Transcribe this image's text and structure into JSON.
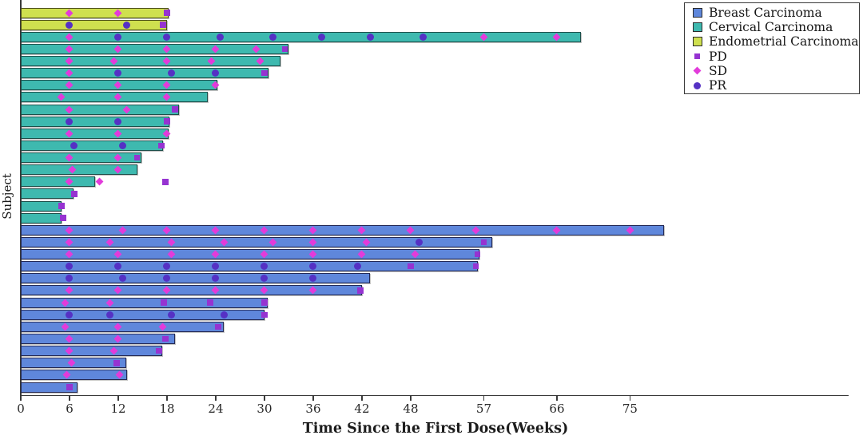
{
  "chart_data": {
    "type": "bar",
    "subtype": "swimmer-plot",
    "orientation": "horizontal",
    "title": "",
    "xlabel": "Time Since the First Dose(Weeks)",
    "ylabel": "Subject",
    "x_ticks": [
      0,
      6,
      12,
      18,
      24,
      30,
      36,
      42,
      48,
      57,
      66,
      75
    ],
    "xlim": [
      0,
      102
    ],
    "unit": "weeks",
    "grid": false,
    "legend_position": "upper right",
    "groups": [
      {
        "label": "Breast Carcinoma",
        "fill": "#5F87DB",
        "edge": "#252A55"
      },
      {
        "label": "Cervical Carcinoma",
        "fill": "#3EB9AF",
        "edge": "#1C4F4A"
      },
      {
        "label": "Endometrial Carcinoma",
        "fill": "#CFE04F",
        "edge": "#4F521C"
      }
    ],
    "response_markers": [
      {
        "label": "PD",
        "shape": "square",
        "color": "#9633D1"
      },
      {
        "label": "SD",
        "shape": "diamond",
        "color": "#E23BDA"
      },
      {
        "label": "PR",
        "shape": "circle",
        "color": "#5531C4"
      }
    ],
    "subjects": [
      {
        "group": "Endometrial Carcinoma",
        "bar_end_weeks": 18.2,
        "events": [
          {
            "week": 6,
            "response": "SD"
          },
          {
            "week": 12,
            "response": "SD"
          },
          {
            "week": 18,
            "response": "PD"
          }
        ]
      },
      {
        "group": "Endometrial Carcinoma",
        "bar_end_weeks": 18.0,
        "events": [
          {
            "week": 6,
            "response": "PR"
          },
          {
            "week": 13,
            "response": "PR"
          },
          {
            "week": 17.5,
            "response": "PD"
          }
        ]
      },
      {
        "group": "Cervical Carcinoma",
        "bar_end_weeks": 69,
        "events": [
          {
            "week": 6,
            "response": "SD"
          },
          {
            "week": 12,
            "response": "PR"
          },
          {
            "week": 18,
            "response": "PR"
          },
          {
            "week": 24.5,
            "response": "PR"
          },
          {
            "week": 31,
            "response": "PR"
          },
          {
            "week": 37,
            "response": "PR"
          },
          {
            "week": 43,
            "response": "PR"
          },
          {
            "week": 49.5,
            "response": "PR"
          },
          {
            "week": 57,
            "response": "SD"
          },
          {
            "week": 66,
            "response": "SD"
          }
        ]
      },
      {
        "group": "Cervical Carcinoma",
        "bar_end_weeks": 33,
        "events": [
          {
            "week": 6,
            "response": "SD"
          },
          {
            "week": 12,
            "response": "SD"
          },
          {
            "week": 18,
            "response": "SD"
          },
          {
            "week": 24,
            "response": "SD"
          },
          {
            "week": 29,
            "response": "SD"
          },
          {
            "week": 32.5,
            "response": "PD"
          }
        ]
      },
      {
        "group": "Cervical Carcinoma",
        "bar_end_weeks": 32,
        "events": [
          {
            "week": 6,
            "response": "SD"
          },
          {
            "week": 11.5,
            "response": "SD"
          },
          {
            "week": 18,
            "response": "SD"
          },
          {
            "week": 23.5,
            "response": "SD"
          },
          {
            "week": 29.5,
            "response": "SD"
          }
        ]
      },
      {
        "group": "Cervical Carcinoma",
        "bar_end_weeks": 30.5,
        "events": [
          {
            "week": 6,
            "response": "SD"
          },
          {
            "week": 12,
            "response": "PR"
          },
          {
            "week": 18.5,
            "response": "PR"
          },
          {
            "week": 24,
            "response": "PR"
          },
          {
            "week": 30,
            "response": "PD"
          }
        ]
      },
      {
        "group": "Cervical Carcinoma",
        "bar_end_weeks": 24.2,
        "events": [
          {
            "week": 6,
            "response": "SD"
          },
          {
            "week": 12,
            "response": "SD"
          },
          {
            "week": 18,
            "response": "SD"
          },
          {
            "week": 24,
            "response": "SD"
          }
        ]
      },
      {
        "group": "Cervical Carcinoma",
        "bar_end_weeks": 23,
        "events": [
          {
            "week": 5,
            "response": "SD"
          },
          {
            "week": 12,
            "response": "SD"
          },
          {
            "week": 18,
            "response": "SD"
          }
        ]
      },
      {
        "group": "Cervical Carcinoma",
        "bar_end_weeks": 19.5,
        "events": [
          {
            "week": 6,
            "response": "SD"
          },
          {
            "week": 13,
            "response": "SD"
          },
          {
            "week": 19,
            "response": "PD"
          }
        ]
      },
      {
        "group": "Cervical Carcinoma",
        "bar_end_weeks": 18.3,
        "events": [
          {
            "week": 6,
            "response": "PR"
          },
          {
            "week": 12,
            "response": "PR"
          },
          {
            "week": 18,
            "response": "PD"
          }
        ]
      },
      {
        "group": "Cervical Carcinoma",
        "bar_end_weeks": 18.2,
        "events": [
          {
            "week": 6,
            "response": "SD"
          },
          {
            "week": 12,
            "response": "SD"
          },
          {
            "week": 18,
            "response": "SD"
          }
        ]
      },
      {
        "group": "Cervical Carcinoma",
        "bar_end_weeks": 17.5,
        "events": [
          {
            "week": 6.5,
            "response": "PR"
          },
          {
            "week": 12.5,
            "response": "PR"
          },
          {
            "week": 17.3,
            "response": "PD"
          }
        ]
      },
      {
        "group": "Cervical Carcinoma",
        "bar_end_weeks": 14.9,
        "events": [
          {
            "week": 6,
            "response": "SD"
          },
          {
            "week": 12,
            "response": "SD"
          },
          {
            "week": 14.3,
            "response": "PD"
          }
        ]
      },
      {
        "group": "Cervical Carcinoma",
        "bar_end_weeks": 14.4,
        "events": [
          {
            "week": 6.3,
            "response": "SD"
          },
          {
            "week": 12,
            "response": "SD"
          }
        ]
      },
      {
        "group": "Cervical Carcinoma",
        "bar_end_weeks": 9.1,
        "events": [
          {
            "week": 6,
            "response": "SD"
          },
          {
            "week": 9.7,
            "response": "SD"
          },
          {
            "week": 17.8,
            "response": "PD"
          }
        ]
      },
      {
        "group": "Cervical Carcinoma",
        "bar_end_weeks": 6.5,
        "events": [
          {
            "week": 6.6,
            "response": "PD"
          }
        ]
      },
      {
        "group": "Cervical Carcinoma",
        "bar_end_weeks": 5.0,
        "events": [
          {
            "week": 5,
            "response": "PD"
          }
        ]
      },
      {
        "group": "Cervical Carcinoma",
        "bar_end_weeks": 5.0,
        "events": [
          {
            "week": 5.2,
            "response": "PD"
          }
        ]
      },
      {
        "group": "Breast Carcinoma",
        "bar_end_weeks": 79.2,
        "events": [
          {
            "week": 6,
            "response": "SD"
          },
          {
            "week": 12.5,
            "response": "SD"
          },
          {
            "week": 18,
            "response": "SD"
          },
          {
            "week": 24,
            "response": "SD"
          },
          {
            "week": 30,
            "response": "SD"
          },
          {
            "week": 36,
            "response": "SD"
          },
          {
            "week": 42,
            "response": "SD"
          },
          {
            "week": 48,
            "response": "SD"
          },
          {
            "week": 56,
            "response": "SD"
          },
          {
            "week": 66,
            "response": "SD"
          },
          {
            "week": 75,
            "response": "SD"
          }
        ]
      },
      {
        "group": "Breast Carcinoma",
        "bar_end_weeks": 58,
        "events": [
          {
            "week": 6,
            "response": "SD"
          },
          {
            "week": 11,
            "response": "SD"
          },
          {
            "week": 18.5,
            "response": "SD"
          },
          {
            "week": 25,
            "response": "SD"
          },
          {
            "week": 31,
            "response": "SD"
          },
          {
            "week": 36,
            "response": "SD"
          },
          {
            "week": 42.5,
            "response": "SD"
          },
          {
            "week": 49,
            "response": "PR"
          },
          {
            "week": 57,
            "response": "PD"
          }
        ]
      },
      {
        "group": "Breast Carcinoma",
        "bar_end_weeks": 56.5,
        "events": [
          {
            "week": 6,
            "response": "SD"
          },
          {
            "week": 12,
            "response": "SD"
          },
          {
            "week": 18.5,
            "response": "SD"
          },
          {
            "week": 24,
            "response": "SD"
          },
          {
            "week": 30,
            "response": "SD"
          },
          {
            "week": 36,
            "response": "SD"
          },
          {
            "week": 42,
            "response": "SD"
          },
          {
            "week": 48.5,
            "response": "SD"
          },
          {
            "week": 56.2,
            "response": "PD"
          }
        ]
      },
      {
        "group": "Breast Carcinoma",
        "bar_end_weeks": 56.3,
        "events": [
          {
            "week": 6,
            "response": "PR"
          },
          {
            "week": 12,
            "response": "PR"
          },
          {
            "week": 18,
            "response": "PR"
          },
          {
            "week": 24,
            "response": "PR"
          },
          {
            "week": 30,
            "response": "PR"
          },
          {
            "week": 36,
            "response": "PR"
          },
          {
            "week": 41.5,
            "response": "PR"
          },
          {
            "week": 48,
            "response": "PD"
          },
          {
            "week": 56,
            "response": "PD"
          }
        ]
      },
      {
        "group": "Breast Carcinoma",
        "bar_end_weeks": 43,
        "events": [
          {
            "week": 6,
            "response": "PR"
          },
          {
            "week": 12.5,
            "response": "PR"
          },
          {
            "week": 18,
            "response": "PR"
          },
          {
            "week": 24,
            "response": "PR"
          },
          {
            "week": 30,
            "response": "PR"
          },
          {
            "week": 36,
            "response": "PR"
          }
        ]
      },
      {
        "group": "Breast Carcinoma",
        "bar_end_weeks": 42,
        "events": [
          {
            "week": 6,
            "response": "SD"
          },
          {
            "week": 12,
            "response": "SD"
          },
          {
            "week": 18,
            "response": "SD"
          },
          {
            "week": 24,
            "response": "SD"
          },
          {
            "week": 30,
            "response": "SD"
          },
          {
            "week": 36,
            "response": "SD"
          },
          {
            "week": 41.8,
            "response": "PD"
          }
        ]
      },
      {
        "group": "Breast Carcinoma",
        "bar_end_weeks": 30.4,
        "events": [
          {
            "week": 5.5,
            "response": "SD"
          },
          {
            "week": 11,
            "response": "SD"
          },
          {
            "week": 17.6,
            "response": "PD"
          },
          {
            "week": 23.3,
            "response": "PD"
          },
          {
            "week": 30,
            "response": "PD"
          }
        ]
      },
      {
        "group": "Breast Carcinoma",
        "bar_end_weeks": 30,
        "events": [
          {
            "week": 6,
            "response": "PR"
          },
          {
            "week": 11,
            "response": "PR"
          },
          {
            "week": 18.5,
            "response": "PR"
          },
          {
            "week": 25,
            "response": "PR"
          },
          {
            "week": 30,
            "response": "PD"
          }
        ]
      },
      {
        "group": "Breast Carcinoma",
        "bar_end_weeks": 25,
        "events": [
          {
            "week": 5.5,
            "response": "SD"
          },
          {
            "week": 12,
            "response": "SD"
          },
          {
            "week": 17.5,
            "response": "SD"
          },
          {
            "week": 24.3,
            "response": "PD"
          }
        ]
      },
      {
        "group": "Breast Carcinoma",
        "bar_end_weeks": 19,
        "events": [
          {
            "week": 6,
            "response": "SD"
          },
          {
            "week": 12,
            "response": "SD"
          },
          {
            "week": 17.8,
            "response": "PD"
          }
        ]
      },
      {
        "group": "Breast Carcinoma",
        "bar_end_weeks": 17.4,
        "events": [
          {
            "week": 6,
            "response": "SD"
          },
          {
            "week": 11.5,
            "response": "SD"
          },
          {
            "week": 17,
            "response": "PD"
          }
        ]
      },
      {
        "group": "Breast Carcinoma",
        "bar_end_weeks": 13,
        "events": [
          {
            "week": 6.2,
            "response": "SD"
          },
          {
            "week": 11.8,
            "response": "PD"
          }
        ]
      },
      {
        "group": "Breast Carcinoma",
        "bar_end_weeks": 13.1,
        "events": [
          {
            "week": 5.7,
            "response": "SD"
          },
          {
            "week": 12.1,
            "response": "SD"
          }
        ]
      },
      {
        "group": "Breast Carcinoma",
        "bar_end_weeks": 7,
        "events": [
          {
            "week": 6,
            "response": "PD"
          }
        ]
      }
    ]
  }
}
